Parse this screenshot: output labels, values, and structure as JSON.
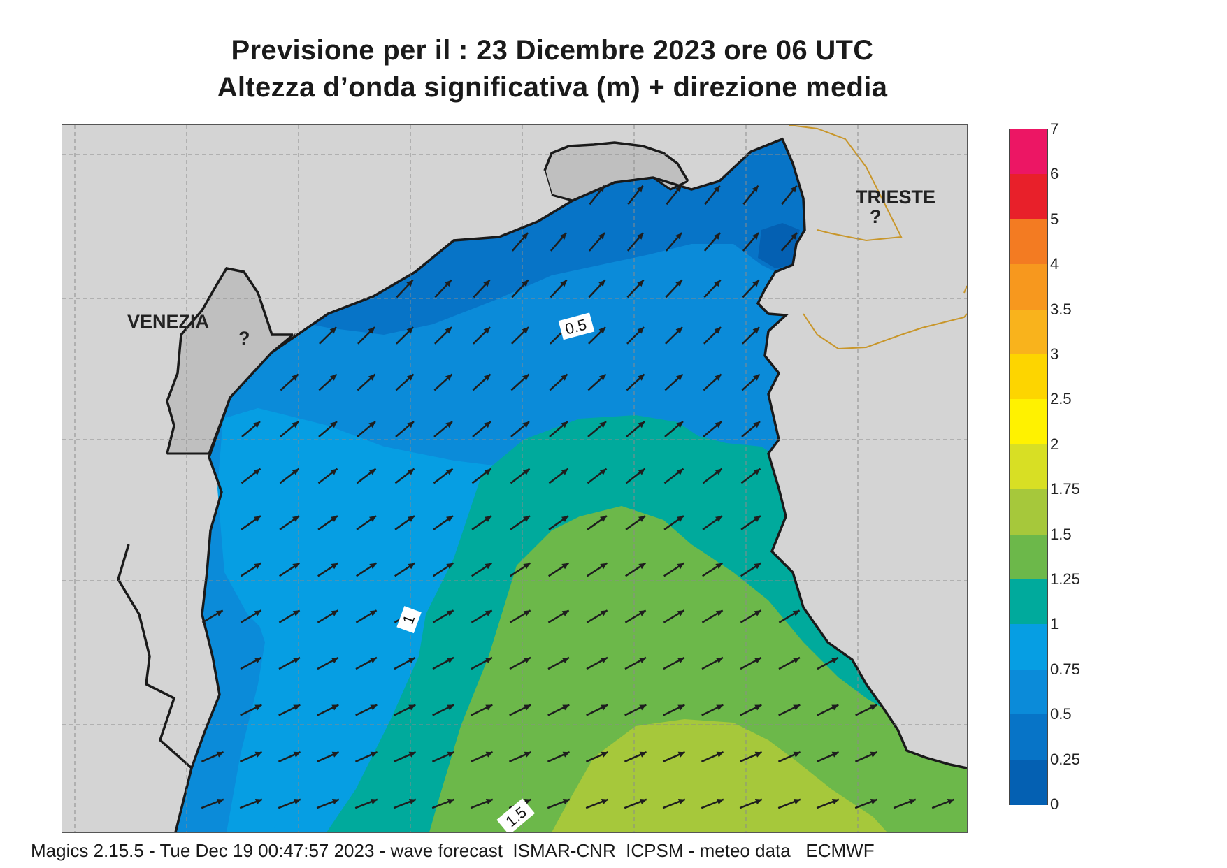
{
  "header": {
    "line1": "Previsione per il  :  23 Dicembre  2023    ore 06 UTC",
    "line2": "Altezza d’onda significativa (m) + direzione media"
  },
  "map": {
    "cities": [
      {
        "name": "VENEZIA"
      },
      {
        "name": "TRIESTE"
      }
    ],
    "contour_labels": [
      "0.5",
      "1",
      "1.5"
    ],
    "arrow_direction": "toward north-east"
  },
  "legend": {
    "ticks": [
      "7",
      "6",
      "5",
      "4",
      "3.5",
      "3",
      "2.5",
      "2",
      "1.75",
      "1.5",
      "1.25",
      "1",
      "0.75",
      "0.5",
      "0.25",
      "0"
    ],
    "colors": [
      "#ec1664",
      "#e8202a",
      "#f37b22",
      "#f7981e",
      "#f9b31c",
      "#fdd500",
      "#fff200",
      "#d8df24",
      "#a6c83b",
      "#6cb84a",
      "#00aa9c",
      "#069ee3",
      "#0b8bd9",
      "#0774c7",
      "#0460b2"
    ]
  },
  "footer": {
    "text": "Magics 2.15.5 - Tue Dec 19 00:47:57 2023 - wave forecast  ISMAR-CNR  ICPSM - meteo data   ECMWF"
  }
}
